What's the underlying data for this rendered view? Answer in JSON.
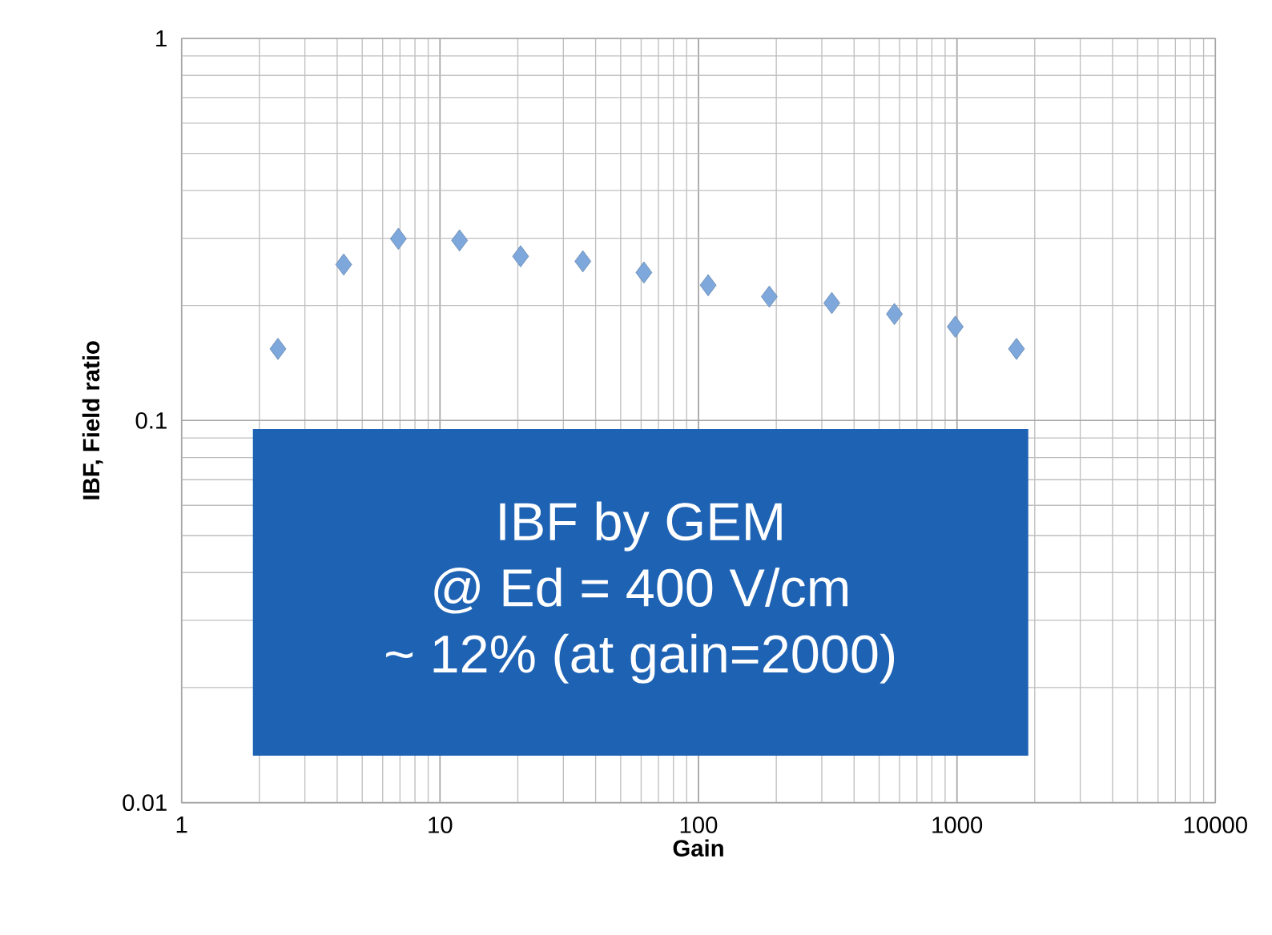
{
  "chart_data": {
    "type": "scatter",
    "xlabel": "Gain",
    "ylabel": "IBF,  Field ratio",
    "x": [
      2.36,
      4.24,
      6.9,
      11.9,
      20.5,
      35.7,
      61.5,
      109,
      188,
      328,
      573,
      985,
      1700
    ],
    "series": [
      {
        "color": "#7ea7db",
        "values": [
          0.154,
          0.256,
          0.299,
          0.296,
          0.269,
          0.261,
          0.244,
          0.226,
          0.211,
          0.203,
          0.19,
          0.176,
          0.154
        ]
      }
    ],
    "log": "xy",
    "xlim": [
      1,
      10000
    ],
    "ylim": [
      0.01,
      1
    ],
    "xticks": [
      1,
      10,
      100,
      1000,
      10000
    ],
    "yticks": [
      0.01,
      0.1,
      1
    ],
    "grid": true,
    "marker": "diamond",
    "annotations": [
      "IBF by GEM",
      "@ Ed = 400 V/cm",
      "~ 12% (at gain=2000)"
    ]
  }
}
